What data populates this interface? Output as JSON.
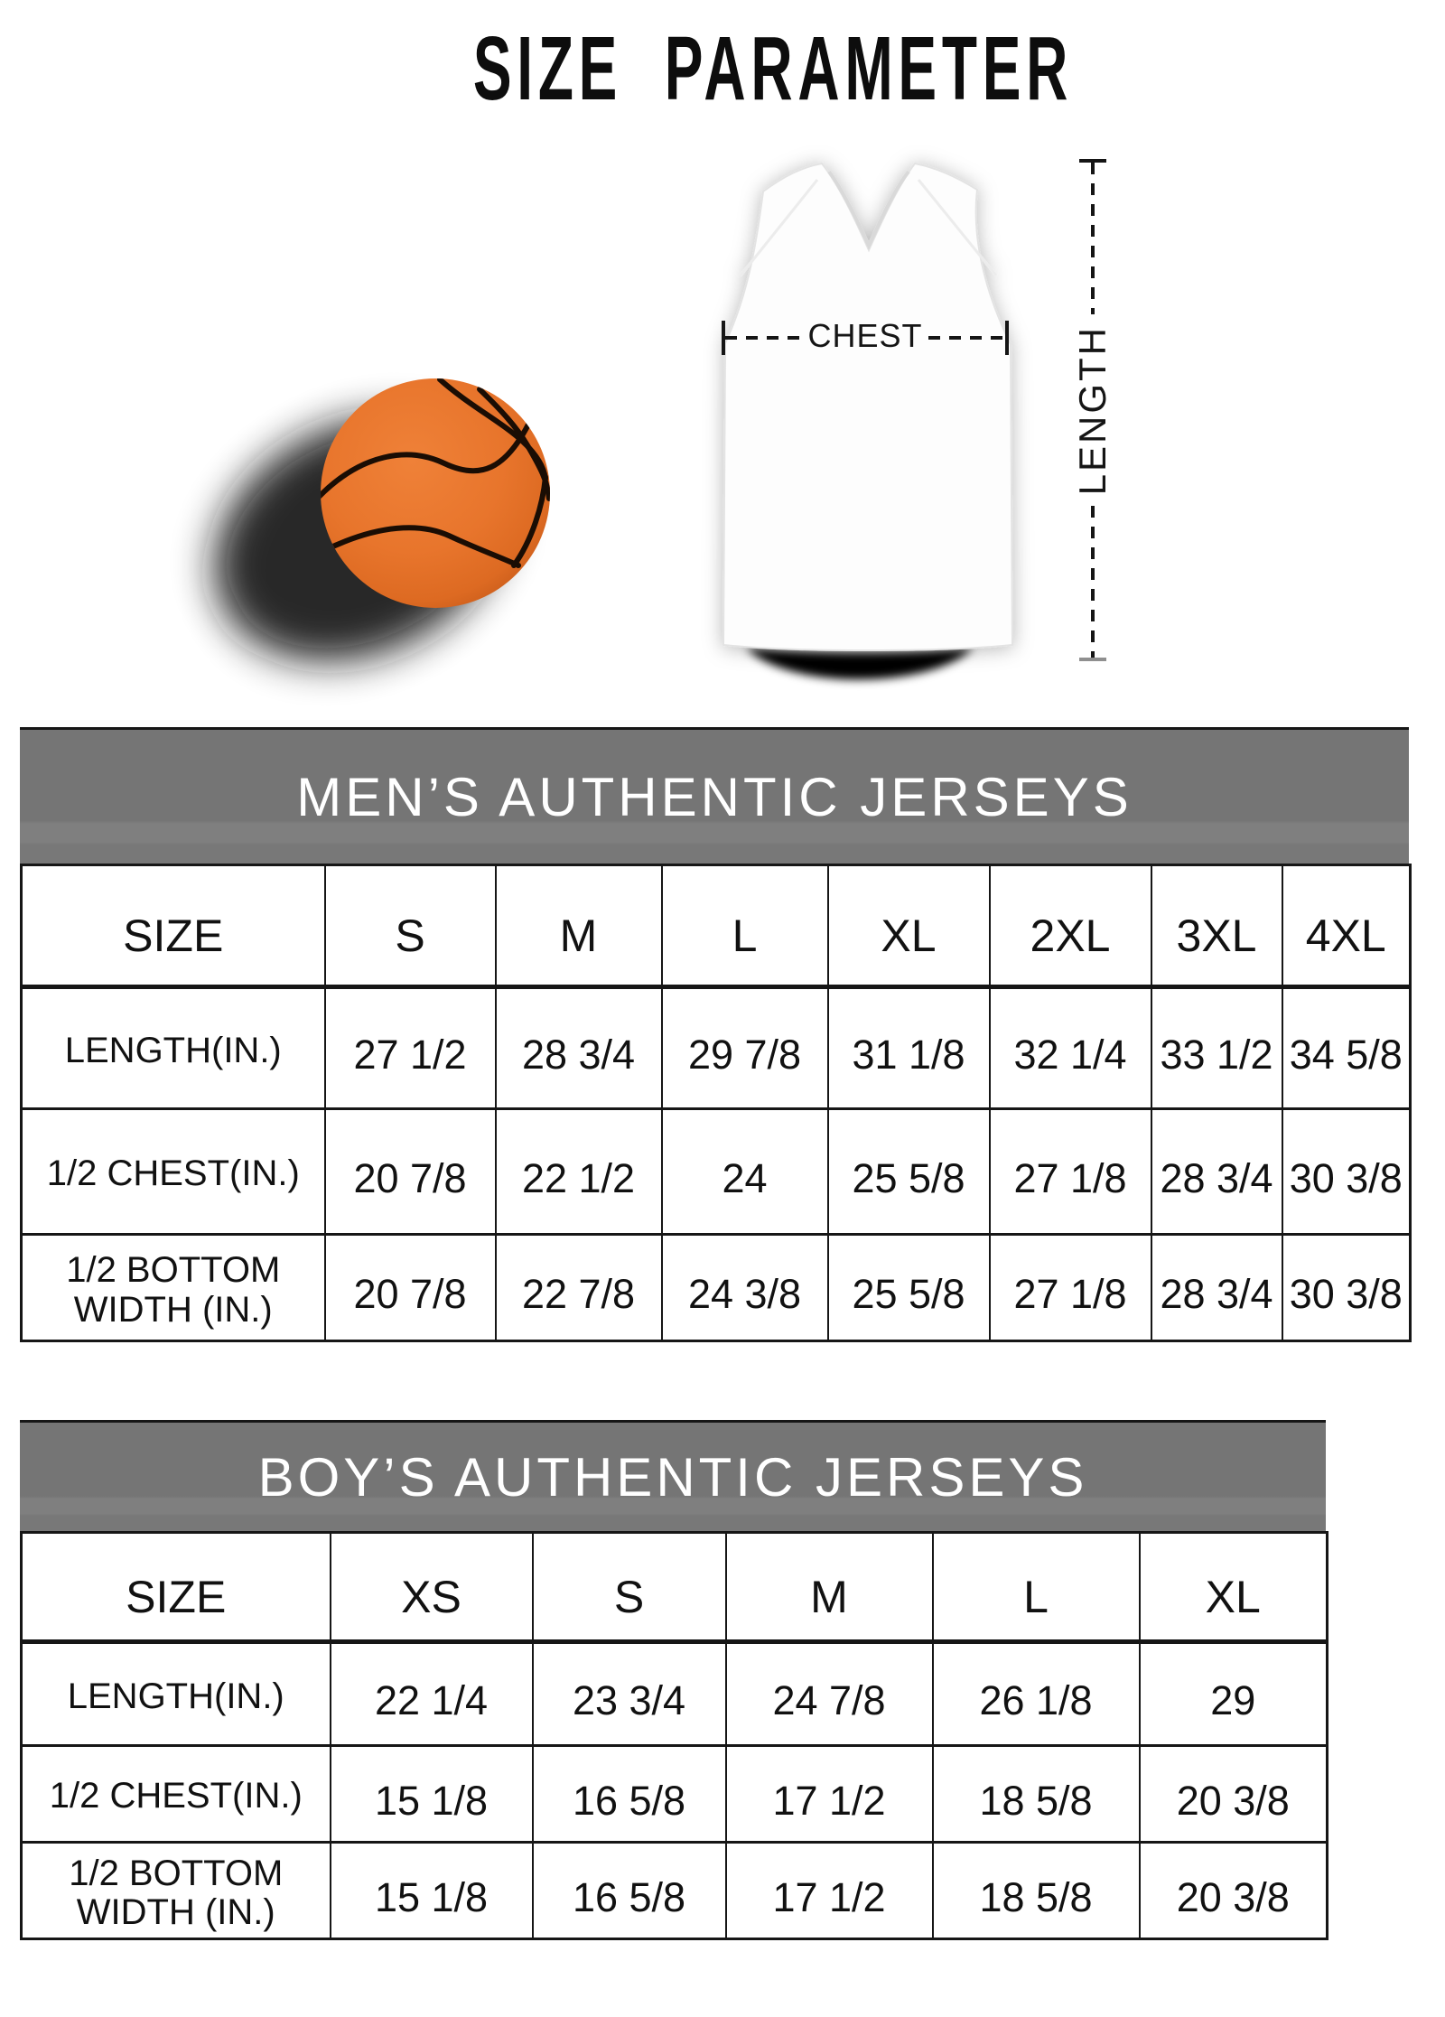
{
  "title": "SIZE PARAMETER",
  "diagram": {
    "chest_label": "CHEST",
    "length_label": "LENGTH",
    "ball_color": "#e8752c",
    "ball_seam_color": "#1a0d04",
    "jersey_color": "#ffffff",
    "shadow_color": "#000000"
  },
  "tables": {
    "header_bg": "#787878",
    "header_text_color": "#ffffff",
    "border_color": "#161616",
    "men": {
      "title": "MEN’S AUTHENTIC JERSEYS",
      "size_label": "SIZE",
      "sizes": [
        "S",
        "M",
        "L",
        "XL",
        "2XL",
        "3XL",
        "4XL"
      ],
      "rows": [
        {
          "label": "LENGTH(IN.)",
          "values": [
            "27 1/2",
            "28 3/4",
            "29 7/8",
            "31 1/8",
            "32 1/4",
            "33 1/2",
            "34 5/8"
          ]
        },
        {
          "label": "1/2 CHEST(IN.)",
          "values": [
            "20 7/8",
            "22 1/2",
            "24",
            "25 5/8",
            "27 1/8",
            "28 3/4",
            "30 3/8"
          ]
        },
        {
          "label": "1/2 BOTTOM WIDTH (IN.)",
          "values": [
            "20 7/8",
            "22 7/8",
            "24 3/8",
            "25 5/8",
            "27 1/8",
            "28 3/4",
            "30 3/8"
          ]
        }
      ]
    },
    "boy": {
      "title": "BOY’S AUTHENTIC JERSEYS",
      "size_label": "SIZE",
      "sizes": [
        "XS",
        "S",
        "M",
        "L",
        "XL"
      ],
      "rows": [
        {
          "label": "LENGTH(IN.)",
          "values": [
            "22 1/4",
            "23 3/4",
            "24 7/8",
            "26 1/8",
            "29"
          ]
        },
        {
          "label": "1/2 CHEST(IN.)",
          "values": [
            "15 1/8",
            "16 5/8",
            "17 1/2",
            "18 5/8",
            "20 3/8"
          ]
        },
        {
          "label": "1/2 BOTTOM WIDTH (IN.)",
          "values": [
            "15 1/8",
            "16 5/8",
            "17 1/2",
            "18 5/8",
            "20 3/8"
          ]
        }
      ]
    }
  }
}
